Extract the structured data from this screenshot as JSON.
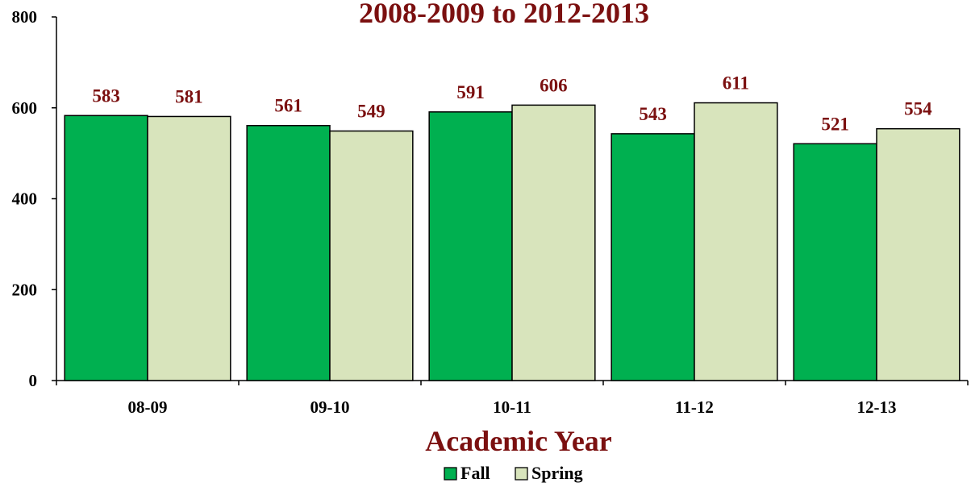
{
  "chart_data": {
    "type": "bar",
    "title": "2008-2009 to 2012-2013",
    "xlabel": "Academic Year",
    "ylabel": "",
    "categories": [
      "08-09",
      "09-10",
      "10-11",
      "11-12",
      "12-13"
    ],
    "series": [
      {
        "name": "Fall",
        "values": [
          583,
          561,
          591,
          543,
          521
        ],
        "color": "#00b050"
      },
      {
        "name": "Spring",
        "values": [
          581,
          549,
          606,
          611,
          554
        ],
        "color": "#d8e4bc"
      }
    ],
    "ylim": [
      0,
      800
    ],
    "yticks": [
      "0",
      "200",
      "400",
      "600",
      "800"
    ],
    "grid": false,
    "legend_position": "bottom",
    "colors": {
      "title": "#7b1010",
      "data_labels": "#7b1010",
      "bar_outline": "#000000"
    }
  }
}
